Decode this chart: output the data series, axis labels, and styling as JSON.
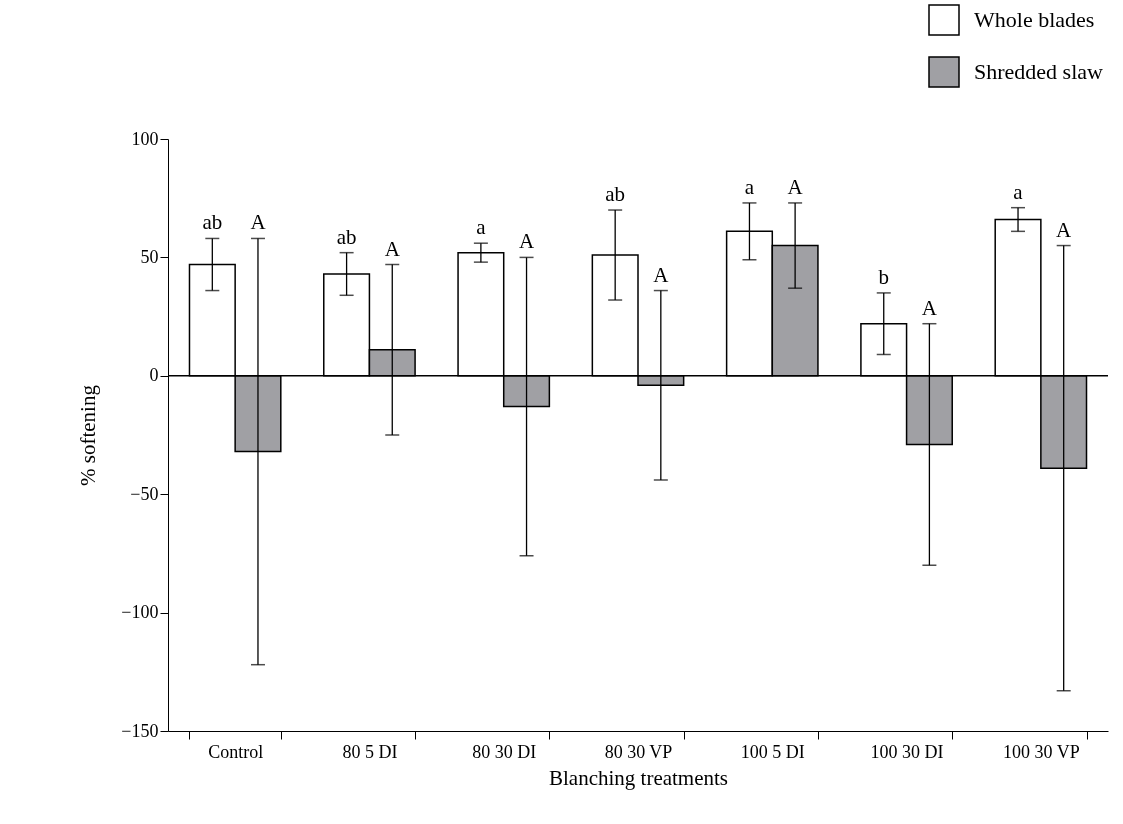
{
  "chart_data": {
    "type": "bar",
    "categories": [
      "Control",
      "80 5 DI",
      "80 30 DI",
      "80 30 VP",
      "100 5 DI",
      "100 30 DI",
      "100 30 VP"
    ],
    "xlabel": "Blanching treatments",
    "ylabel": "% softening",
    "series": [
      {
        "name": "Whole blades",
        "color": "#ffffff",
        "values": [
          47,
          43,
          52,
          51,
          61,
          22,
          66
        ],
        "errors": [
          11,
          9,
          4,
          19,
          12,
          13,
          5
        ]
      },
      {
        "name": "Shredded slaw",
        "color": "#a0a0a4",
        "values": [
          -32,
          11,
          -13,
          -4,
          55,
          -29,
          -39
        ],
        "errors": [
          90,
          36,
          63,
          40,
          18,
          51,
          94
        ]
      }
    ],
    "ylim": [
      -150,
      100
    ],
    "yticks": [
      -150,
      -100,
      -50,
      0,
      50,
      100
    ],
    "legend": "top right",
    "annotations": [
      "ab",
      "A",
      "ab",
      "A",
      "a",
      "A",
      "ab",
      "A",
      "a",
      "A",
      "b",
      "A",
      "a",
      "A"
    ]
  }
}
